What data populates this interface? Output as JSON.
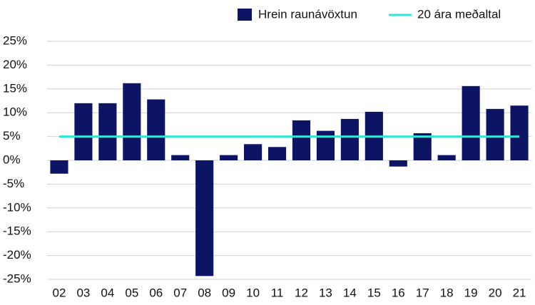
{
  "chart_data": {
    "type": "bar",
    "categories": [
      "02",
      "03",
      "04",
      "05",
      "06",
      "07",
      "08",
      "09",
      "10",
      "11",
      "12",
      "13",
      "14",
      "15",
      "16",
      "17",
      "18",
      "19",
      "20",
      "21"
    ],
    "series": [
      {
        "name": "Hrein raunávöxtun",
        "type": "bar",
        "color": "#0c1463",
        "values": [
          -2.8,
          12,
          12,
          16.2,
          12.8,
          1.1,
          -24.3,
          1.1,
          3.4,
          2.8,
          8.4,
          6.2,
          8.7,
          10.2,
          -1.3,
          5.7,
          1.1,
          15.6,
          10.8,
          11.5
        ]
      },
      {
        "name": "20 ára meðaltal",
        "type": "line",
        "color": "#2ee6d6",
        "values": [
          5,
          5,
          5,
          5,
          5,
          5,
          5,
          5,
          5,
          5,
          5,
          5,
          5,
          5,
          5,
          5,
          5,
          5,
          5,
          5
        ]
      }
    ],
    "ylim": [
      -25,
      25
    ],
    "yticks": [
      {
        "value": 25,
        "label": "25%"
      },
      {
        "value": 20,
        "label": "20%"
      },
      {
        "value": 15,
        "label": "15%"
      },
      {
        "value": 10,
        "label": "10%"
      },
      {
        "value": 5,
        "label": "5%"
      },
      {
        "value": 0,
        "label": "0%"
      },
      {
        "value": -5,
        "label": "-5%"
      },
      {
        "value": -10,
        "label": "-10%"
      },
      {
        "value": -15,
        "label": "-15%"
      },
      {
        "value": -20,
        "label": "-20%"
      },
      {
        "value": -25,
        "label": "-25%"
      }
    ],
    "grid": true,
    "legend": "top-right"
  }
}
